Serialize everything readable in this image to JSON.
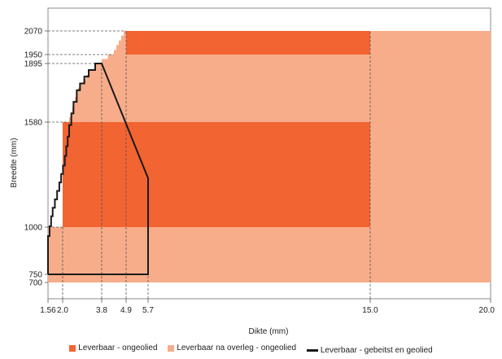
{
  "chart_data": {
    "type": "area",
    "xlabel": "Dikte (mm)",
    "ylabel": "Breedte (mm)",
    "xlim": [
      1.5,
      20.0
    ],
    "ylim": [
      620,
      2150
    ],
    "x_ticks": [
      "1.56",
      "2.0",
      "3.8",
      "4.9",
      "5.7",
      "15.0",
      "20.0"
    ],
    "y_ticks": [
      "700",
      "750",
      "1000",
      "1580",
      "1895",
      "1950",
      "2070"
    ],
    "series": [
      {
        "name": "Leverbaar na overleg - ongeolied",
        "color": "#f8ad8a",
        "kind": "staircase-region",
        "x": [
          1.56,
          2.0,
          2.3,
          2.7,
          3.2,
          3.8,
          4.3,
          4.9,
          20.0
        ],
        "y": [
          700,
          1000,
          1580,
          1720,
          1820,
          1895,
          1950,
          2070,
          2070
        ]
      },
      {
        "name": "Leverbaar - ongeolied",
        "color": "#f26432",
        "kind": "bands",
        "bands": [
          {
            "x": [
              2.0,
              15.0
            ],
            "y": [
              1000,
              1580
            ]
          },
          {
            "x": [
              4.9,
              15.0
            ],
            "y": [
              1950,
              2070
            ]
          }
        ]
      },
      {
        "name": "Leverbaar - gebeitst en geolied",
        "color": "#1a1a1a",
        "kind": "outline",
        "points": [
          [
            1.56,
            750
          ],
          [
            1.56,
            900
          ],
          [
            1.7,
            1060
          ],
          [
            1.9,
            1200
          ],
          [
            2.1,
            1340
          ],
          [
            2.3,
            1500
          ],
          [
            2.5,
            1620
          ],
          [
            2.8,
            1730
          ],
          [
            3.2,
            1810
          ],
          [
            3.8,
            1895
          ],
          [
            5.7,
            1270
          ],
          [
            5.7,
            750
          ],
          [
            1.56,
            750
          ]
        ]
      }
    ],
    "reference_lines": [
      {
        "axis": "y",
        "value": 2070,
        "to_x": 4.9
      },
      {
        "axis": "y",
        "value": 1950,
        "to_x": 4.3
      },
      {
        "axis": "y",
        "value": 1895,
        "to_x": 3.8
      },
      {
        "axis": "y",
        "value": 1580,
        "to_x": 2.3
      },
      {
        "axis": "y",
        "value": 1000,
        "to_x": 2.0
      },
      {
        "axis": "x",
        "value": 2.0,
        "to_y": 1000
      },
      {
        "axis": "x",
        "value": 3.8,
        "to_y": 1895
      },
      {
        "axis": "x",
        "value": 4.9,
        "to_y": 2070
      },
      {
        "axis": "x",
        "value": 5.7,
        "to_y": 1270
      },
      {
        "axis": "x",
        "value": 15.0,
        "to_y": 2070
      }
    ],
    "legend_position": "bottom",
    "grid": false
  }
}
